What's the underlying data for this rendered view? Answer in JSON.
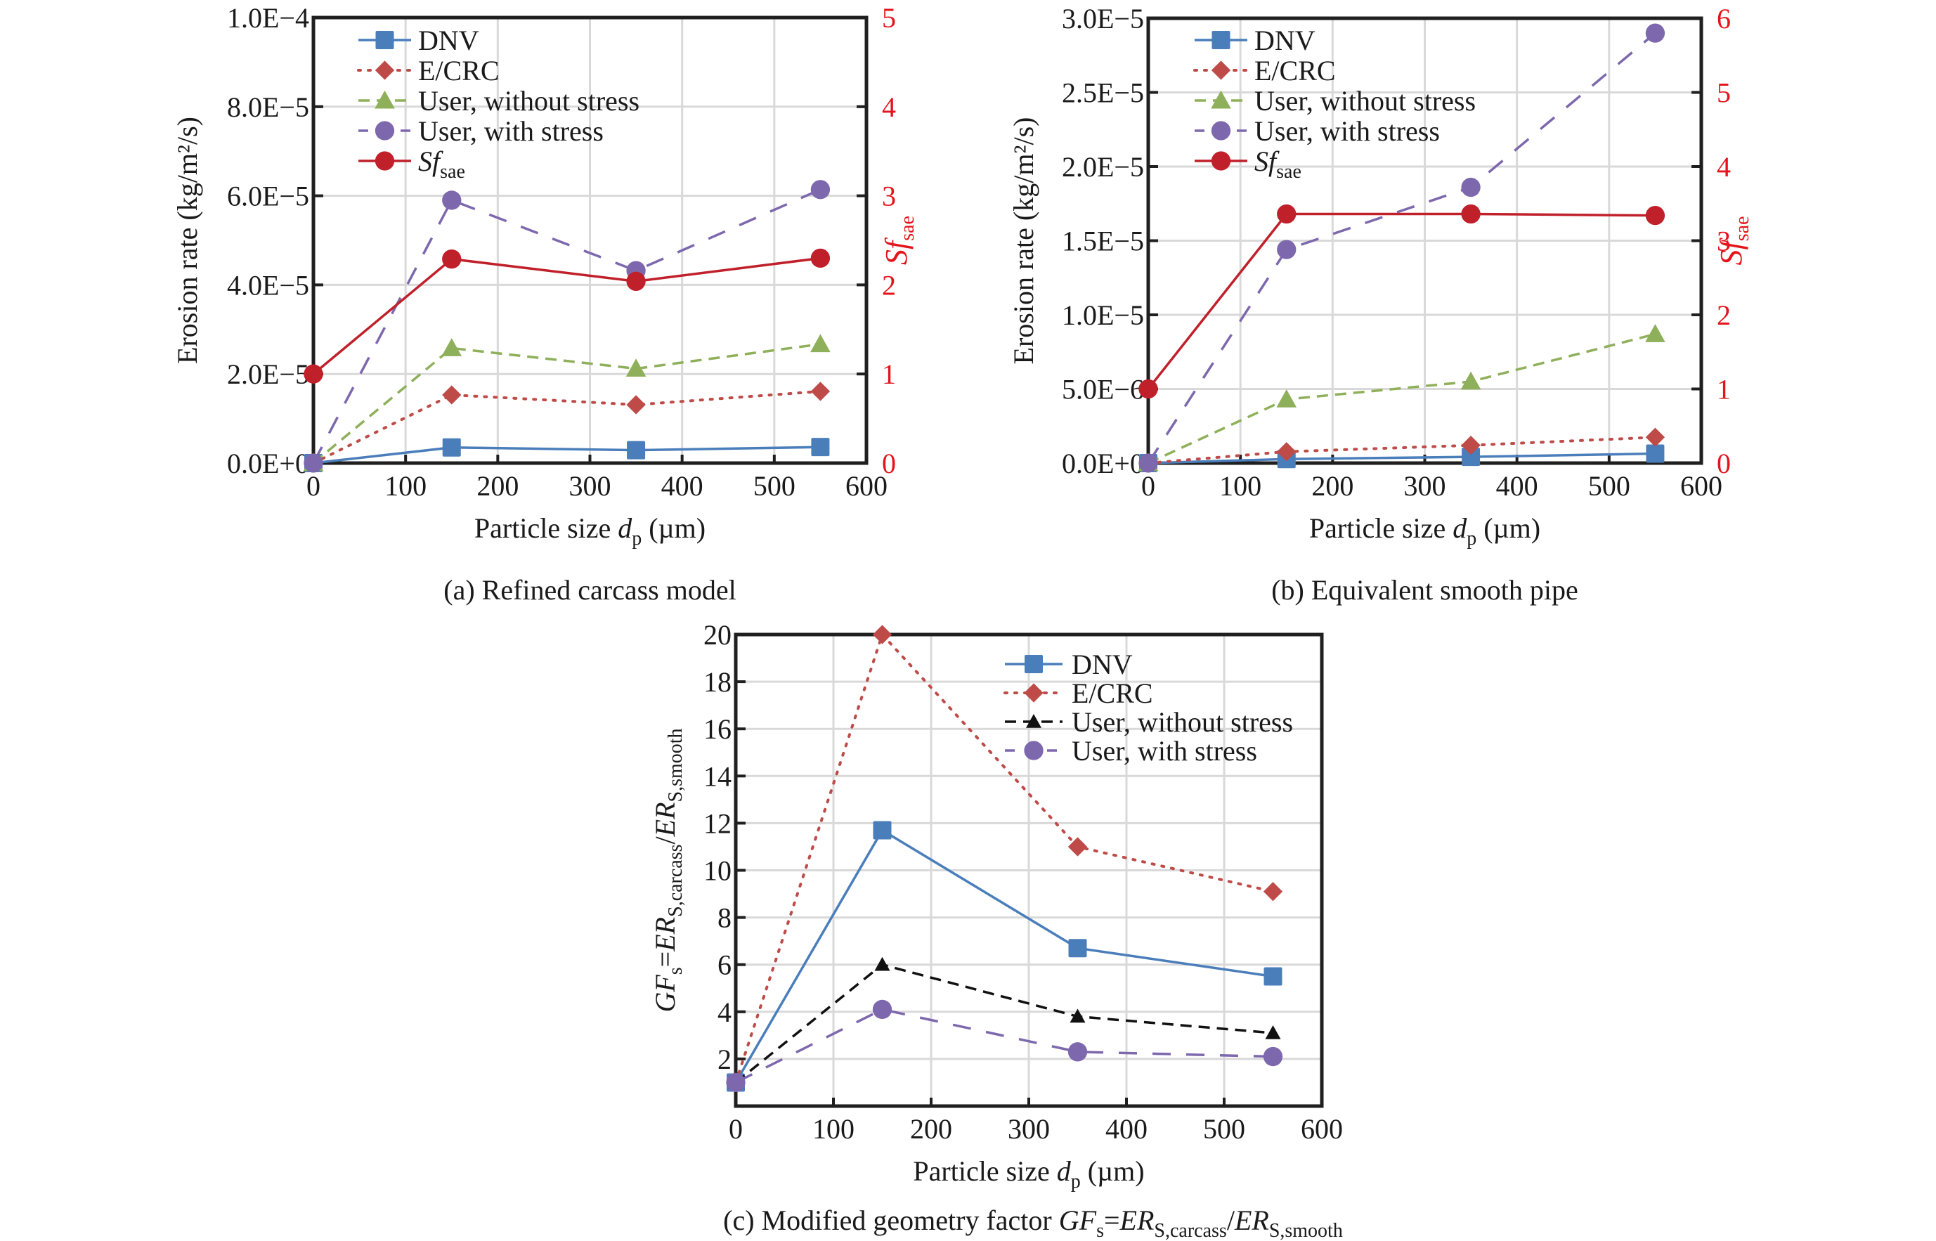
{
  "figure": {
    "panels": [
      "a",
      "b",
      "c"
    ]
  },
  "styles": {
    "DNV": {
      "color": "#4a7ebb",
      "dash": "solid",
      "marker": "square"
    },
    "E/CRC": {
      "color": "#be4b48",
      "dash": "dotted",
      "marker": "diamond"
    },
    "User, without stress": {
      "color": "#8fb05a",
      "dash": "dashed",
      "marker": "triangle"
    },
    "User, without stress (c)": {
      "color": "#111111",
      "dash": "dashed",
      "marker": "triangle"
    },
    "User, with stress": {
      "color": "#7d68ad",
      "dash": "longdash",
      "marker": "circle"
    },
    "Sf_sae": {
      "color": "#c0202a",
      "dash": "solid",
      "marker": "circle"
    }
  },
  "chart_data": [
    {
      "id": "a",
      "type": "line",
      "caption": "(a) Refined carcass model",
      "xlabel_prefix": "Particle size ",
      "xlabel_var": "d",
      "xlabel_sub": "p",
      "xlabel_suffix": " (µm)",
      "ylabel": "Erosion rate (kg/m²/s)",
      "y2label_main": "Sf",
      "y2label_sub": "sae",
      "xlim": [
        0,
        600
      ],
      "xticks": [
        0,
        100,
        200,
        300,
        400,
        500,
        600
      ],
      "xtick_labels": [
        "0",
        "100",
        "200",
        "300",
        "400",
        "500",
        "600"
      ],
      "ylim": [
        0,
        0.0001
      ],
      "yticks": [
        0,
        2e-05,
        4e-05,
        6e-05,
        8e-05,
        0.0001
      ],
      "ytick_labels": [
        "0.0E+0",
        "2.0E−5",
        "4.0E−5",
        "6.0E−5",
        "8.0E−5",
        "1.0E−4"
      ],
      "y2lim": [
        0,
        5
      ],
      "y2ticks": [
        0,
        1,
        2,
        3,
        4,
        5
      ],
      "y2tick_labels": [
        "0",
        "1",
        "2",
        "3",
        "4",
        "5"
      ],
      "grid": true,
      "legend_position": "top-left",
      "x": [
        0,
        150,
        350,
        550
      ],
      "series": [
        {
          "name": "DNV",
          "style": "DNV",
          "axis": "left",
          "values": [
            0,
            3.5e-06,
            2.9e-06,
            3.6e-06
          ]
        },
        {
          "name": "E/CRC",
          "style": "E/CRC",
          "axis": "left",
          "values": [
            0,
            1.53e-05,
            1.31e-05,
            1.61e-05
          ]
        },
        {
          "name": "User, without stress",
          "style": "User, without stress",
          "axis": "left",
          "values": [
            0,
            2.58e-05,
            2.12e-05,
            2.67e-05
          ]
        },
        {
          "name": "User, with stress",
          "style": "User, with stress",
          "axis": "left",
          "values": [
            0,
            5.9e-05,
            4.32e-05,
            6.14e-05
          ]
        },
        {
          "name": "Sf_sae",
          "legend_main": "Sf",
          "legend_sub": "sae",
          "style": "Sf_sae",
          "axis": "right",
          "values": [
            1.0,
            2.29,
            2.04,
            2.3
          ]
        }
      ]
    },
    {
      "id": "b",
      "type": "line",
      "caption": "(b) Equivalent smooth pipe",
      "xlabel_prefix": "Particle size ",
      "xlabel_var": "d",
      "xlabel_sub": "p",
      "xlabel_suffix": " (µm)",
      "ylabel": "Erosion rate (kg/m²/s)",
      "y2label_main": "Sf",
      "y2label_sub": "sae",
      "xlim": [
        0,
        600
      ],
      "xticks": [
        0,
        100,
        200,
        300,
        400,
        500,
        600
      ],
      "xtick_labels": [
        "0",
        "100",
        "200",
        "300",
        "400",
        "500",
        "600"
      ],
      "ylim": [
        0,
        3e-05
      ],
      "yticks": [
        0,
        5e-06,
        1e-05,
        1.5e-05,
        2e-05,
        2.5e-05,
        3e-05
      ],
      "ytick_labels": [
        "0.0E+0",
        "5.0E−6",
        "1.0E−5",
        "1.5E−5",
        "2.0E−5",
        "2.5E−5",
        "3.0E−5"
      ],
      "y2lim": [
        0,
        6
      ],
      "y2ticks": [
        0,
        1,
        2,
        3,
        4,
        5,
        6
      ],
      "y2tick_labels": [
        "0",
        "1",
        "2",
        "3",
        "4",
        "5",
        "6"
      ],
      "grid": true,
      "legend_position": "top-left",
      "x": [
        0,
        150,
        350,
        550
      ],
      "series": [
        {
          "name": "DNV",
          "style": "DNV",
          "axis": "left",
          "values": [
            0,
            2.7e-07,
            4.2e-07,
            6.4e-07
          ]
        },
        {
          "name": "E/CRC",
          "style": "E/CRC",
          "axis": "left",
          "values": [
            0,
            7.7e-07,
            1.2e-06,
            1.74e-06
          ]
        },
        {
          "name": "User, without stress",
          "style": "User, without stress",
          "axis": "left",
          "values": [
            0,
            4.3e-06,
            5.5e-06,
            8.7e-06
          ]
        },
        {
          "name": "User, with stress",
          "style": "User, with stress",
          "axis": "left",
          "values": [
            0,
            1.44e-05,
            1.86e-05,
            2.9e-05
          ]
        },
        {
          "name": "Sf_sae",
          "legend_main": "Sf",
          "legend_sub": "sae",
          "style": "Sf_sae",
          "axis": "right",
          "values": [
            1.0,
            3.36,
            3.36,
            3.34
          ]
        }
      ]
    },
    {
      "id": "c",
      "type": "line",
      "caption_prefix": "(c) Modified geometry factor ",
      "caption_formula": {
        "GF": "GF",
        "s": "s",
        "eq": "=",
        "ER": "ER",
        "sub1": "S,carcass",
        "slash": "/",
        "sub2": "S,smooth"
      },
      "xlabel_prefix": "Particle size ",
      "xlabel_var": "d",
      "xlabel_sub": "p",
      "xlabel_suffix": " (µm)",
      "ylabel_formula": {
        "GF": "GF",
        "s": "s",
        "eq": "=",
        "ER": "ER",
        "sub1": "S,carcass",
        "slash": "/",
        "sub2": "S,smooth"
      },
      "xlim": [
        0,
        600
      ],
      "xticks": [
        0,
        100,
        200,
        300,
        400,
        500,
        600
      ],
      "xtick_labels": [
        "0",
        "100",
        "200",
        "300",
        "400",
        "500",
        "600"
      ],
      "ylim": [
        0,
        20
      ],
      "yticks": [
        2,
        4,
        6,
        8,
        10,
        12,
        14,
        16,
        18,
        20
      ],
      "ytick_labels": [
        "2",
        "4",
        "6",
        "8",
        "10",
        "12",
        "14",
        "16",
        "18",
        "20"
      ],
      "grid": true,
      "legend_position": "top-right",
      "x": [
        0,
        150,
        350,
        550
      ],
      "series": [
        {
          "name": "DNV",
          "style": "DNV",
          "values": [
            1.0,
            11.7,
            6.7,
            5.5
          ]
        },
        {
          "name": "E/CRC",
          "style": "E/CRC",
          "values": [
            1.0,
            20.0,
            11.0,
            9.1
          ]
        },
        {
          "name": "User, without stress",
          "style": "User, without stress (c)",
          "values": [
            1.0,
            6.0,
            3.8,
            3.1
          ]
        },
        {
          "name": "User, with stress",
          "style": "User, with stress",
          "values": [
            1.0,
            4.1,
            2.3,
            2.1
          ]
        }
      ]
    }
  ]
}
